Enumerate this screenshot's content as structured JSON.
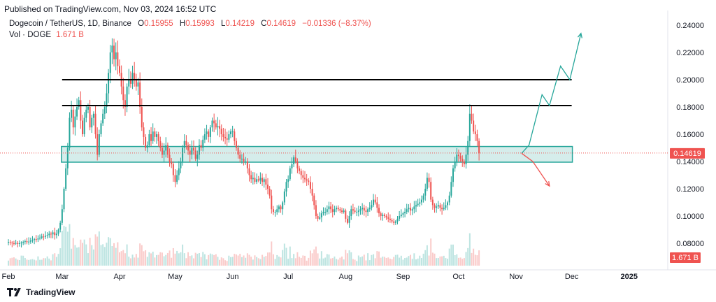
{
  "published": "Published on TradingView.com, Nov 03, 2024 16:52 UTC",
  "legend": {
    "symbol": "Dogecoin / TetherUS, 1D, Binance",
    "o_label": "O",
    "o_value": "0.15955",
    "h_label": "H",
    "h_value": "0.15993",
    "l_label": "L",
    "l_value": "0.14219",
    "c_label": "C",
    "c_value": "0.14619",
    "change": "−0.01336 (−8.37%)",
    "vol_label": "Vol · DOGE",
    "vol_value": "1.671 B"
  },
  "footer": {
    "brand": "TradingView"
  },
  "colors": {
    "up": "#26a69a",
    "down": "#ef5350",
    "zone_fill": "#b2dfdb",
    "zone_border": "#26a69a"
  },
  "chart_data": {
    "type": "candlestick",
    "y_ticks": [
      "0.24000",
      "0.22000",
      "0.20000",
      "0.18000",
      "0.16000",
      "0.14000",
      "0.12000",
      "0.10000",
      "0.08000"
    ],
    "ylim": [
      0.07,
      0.245
    ],
    "x_ticks": [
      {
        "label": "Feb",
        "day": 0
      },
      {
        "label": "Mar",
        "day": 29
      },
      {
        "label": "Apr",
        "day": 60
      },
      {
        "label": "May",
        "day": 90
      },
      {
        "label": "Jun",
        "day": 121
      },
      {
        "label": "Jul",
        "day": 151
      },
      {
        "label": "Aug",
        "day": 182
      },
      {
        "label": "Sep",
        "day": 213
      },
      {
        "label": "Oct",
        "day": 243
      },
      {
        "label": "Nov",
        "day": 274
      },
      {
        "label": "Dec",
        "day": 304
      },
      {
        "label": "2025",
        "day": 335,
        "bold": true
      }
    ],
    "last_price": "0.14619",
    "last_price_value": 0.14619,
    "last_volume": "1.671 B",
    "horizontal_lines": [
      {
        "y": 0.2,
        "from_day": 29,
        "to_day": 304
      },
      {
        "y": 0.181,
        "from_day": 29,
        "to_day": 304
      }
    ],
    "support_zone": {
      "y_top": 0.151,
      "y_bottom": 0.1395,
      "from_day": 29,
      "to_day": 304
    },
    "projection_up": [
      [
        277,
        0.146
      ],
      [
        281,
        0.152
      ],
      [
        288,
        0.189
      ],
      [
        292,
        0.181
      ],
      [
        298,
        0.21
      ],
      [
        303,
        0.2
      ],
      [
        309,
        0.234
      ]
    ],
    "projection_down": [
      [
        277,
        0.146
      ],
      [
        283,
        0.14
      ],
      [
        292,
        0.122
      ]
    ],
    "closes": [
      0.081,
      0.0805,
      0.08,
      0.0798,
      0.0802,
      0.0795,
      0.08,
      0.0805,
      0.081,
      0.0815,
      0.0808,
      0.0812,
      0.082,
      0.0825,
      0.083,
      0.0828,
      0.0835,
      0.084,
      0.085,
      0.0848,
      0.0855,
      0.086,
      0.087,
      0.0865,
      0.088,
      0.086,
      0.087,
      0.09,
      0.095,
      0.105,
      0.12,
      0.135,
      0.15,
      0.172,
      0.178,
      0.165,
      0.173,
      0.18,
      0.185,
      0.17,
      0.16,
      0.172,
      0.178,
      0.18,
      0.165,
      0.172,
      0.175,
      0.16,
      0.145,
      0.16,
      0.168,
      0.175,
      0.18,
      0.19,
      0.205,
      0.22,
      0.225,
      0.215,
      0.22,
      0.21,
      0.205,
      0.195,
      0.185,
      0.18,
      0.195,
      0.2,
      0.197,
      0.205,
      0.2,
      0.195,
      0.198,
      0.18,
      0.165,
      0.158,
      0.15,
      0.152,
      0.16,
      0.155,
      0.162,
      0.158,
      0.16,
      0.155,
      0.15,
      0.145,
      0.148,
      0.152,
      0.145,
      0.14,
      0.138,
      0.13,
      0.125,
      0.13,
      0.135,
      0.14,
      0.15,
      0.155,
      0.152,
      0.148,
      0.145,
      0.15,
      0.148,
      0.142,
      0.145,
      0.152,
      0.15,
      0.156,
      0.16,
      0.162,
      0.158,
      0.165,
      0.17,
      0.168,
      0.165,
      0.166,
      0.164,
      0.16,
      0.158,
      0.157,
      0.156,
      0.16,
      0.162,
      0.162,
      0.155,
      0.15,
      0.145,
      0.142,
      0.142,
      0.14,
      0.14,
      0.135,
      0.13,
      0.127,
      0.128,
      0.125,
      0.127,
      0.126,
      0.128,
      0.125,
      0.127,
      0.123,
      0.12,
      0.115,
      0.105,
      0.103,
      0.103,
      0.105,
      0.107,
      0.105,
      0.11,
      0.118,
      0.125,
      0.127,
      0.135,
      0.138,
      0.143,
      0.14,
      0.135,
      0.133,
      0.13,
      0.128,
      0.127,
      0.126,
      0.125,
      0.12,
      0.115,
      0.108,
      0.1,
      0.098,
      0.099,
      0.102,
      0.103,
      0.103,
      0.105,
      0.107,
      0.105,
      0.103,
      0.105,
      0.106,
      0.105,
      0.104,
      0.103,
      0.104,
      0.098,
      0.095,
      0.1,
      0.105,
      0.104,
      0.103,
      0.103,
      0.104,
      0.105,
      0.106,
      0.104,
      0.103,
      0.105,
      0.106,
      0.108,
      0.112,
      0.11,
      0.106,
      0.102,
      0.1,
      0.101,
      0.1,
      0.099,
      0.098,
      0.097,
      0.096,
      0.095,
      0.096,
      0.098,
      0.1,
      0.101,
      0.102,
      0.103,
      0.105,
      0.106,
      0.104,
      0.105,
      0.107,
      0.108,
      0.109,
      0.11,
      0.112,
      0.115,
      0.12,
      0.128,
      0.125,
      0.112,
      0.108,
      0.106,
      0.107,
      0.108,
      0.106,
      0.105,
      0.106,
      0.108,
      0.11,
      0.115,
      0.125,
      0.135,
      0.14,
      0.145,
      0.144,
      0.142,
      0.14,
      0.138,
      0.145,
      0.155,
      0.175,
      0.17,
      0.162,
      0.16,
      0.155,
      0.146
    ],
    "volume_profile": "relative daily volume (unitless estimates)"
  }
}
